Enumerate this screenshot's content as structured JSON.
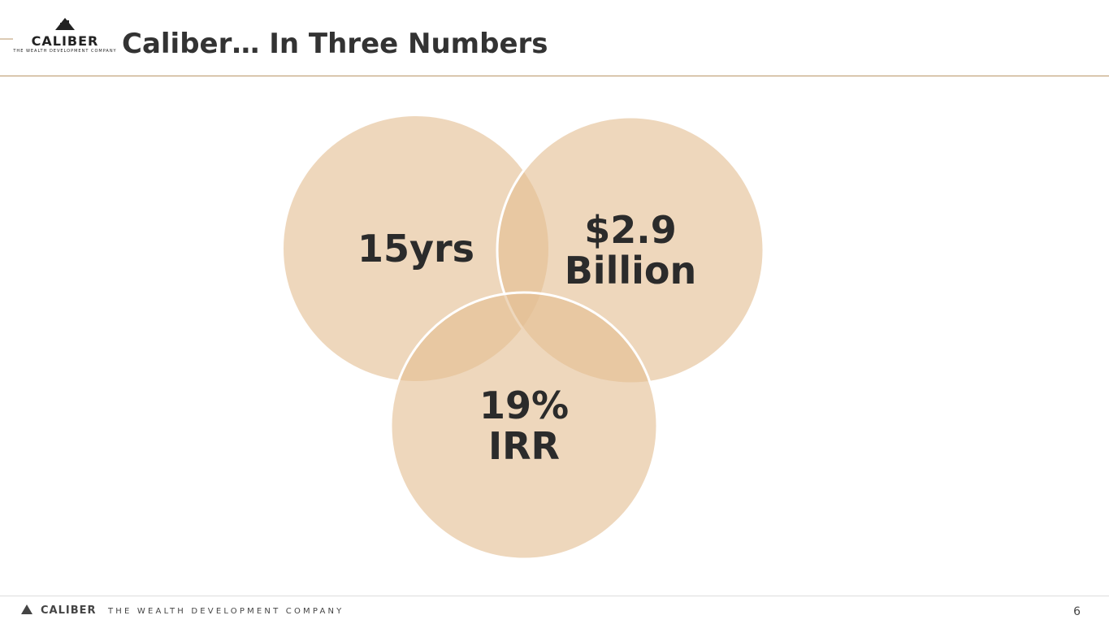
{
  "header": {
    "logo_name": "CALIBER",
    "logo_tagline": "THE WEALTH DEVELOPMENT COMPANY",
    "title": "Caliber… In Three Numbers"
  },
  "circles": [
    {
      "lines": [
        "15yrs"
      ]
    },
    {
      "lines": [
        "$2.9",
        "Billion"
      ]
    },
    {
      "lines": [
        "19%",
        "IRR"
      ]
    }
  ],
  "footer": {
    "brand": "CALIBER",
    "tagline": "THE WEALTH DEVELOPMENT COMPANY",
    "page": 6
  }
}
